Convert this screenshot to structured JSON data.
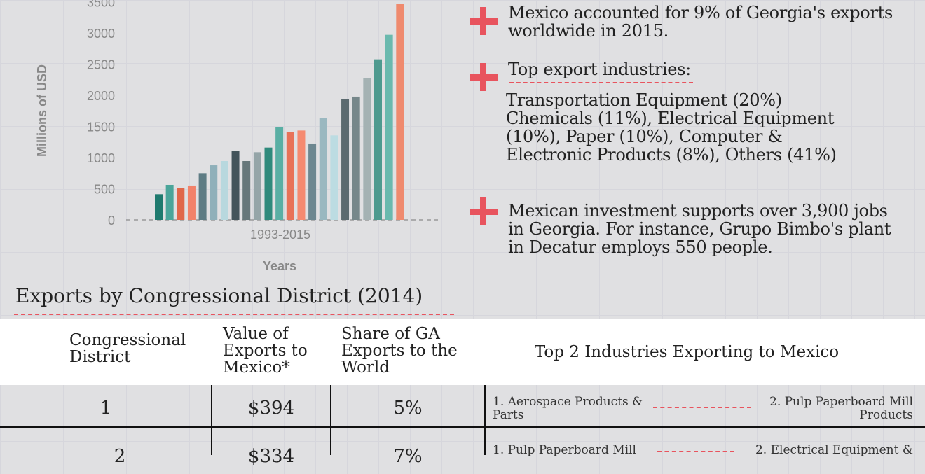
{
  "chart_data": {
    "type": "bar",
    "ylabel": "Millions of USD",
    "xlabel": "Years",
    "x_tick_label": "1993-2015",
    "yticks": [
      0,
      500,
      1000,
      1500,
      2000,
      2500,
      3000,
      3500
    ],
    "ylim": [
      0,
      3500
    ],
    "grid": true,
    "values": [
      412,
      562,
      506,
      551,
      749,
      876,
      944,
      1101,
      944,
      1086,
      1161,
      1491,
      1412,
      1434,
      1225,
      1629,
      1356,
      1936,
      1978,
      2273,
      2577,
      2970,
      3464
    ],
    "colors": [
      "#1f7a6e",
      "#4aa59a",
      "#e0674a",
      "#f2826a",
      "#5e7c84",
      "#8fb0ba",
      "#b8d8de",
      "#43545b",
      "#66777a",
      "#95a5a8",
      "#2f8a7c",
      "#5aafa4",
      "#e87258",
      "#f58a70",
      "#6d8790",
      "#9ab8c0",
      "#bcdce2",
      "#5b6a6f",
      "#76878a",
      "#a4b2b3",
      "#4e9a8f",
      "#6ab9ae",
      "#ef8a6e"
    ]
  },
  "facts": {
    "fact1": "Mexico accounted for 9% of Georgia's exports worldwide in 2015.",
    "fact2_title": "Top export industries:",
    "fact2_body": "Transportation Equipment (20%) Chemicals (11%), Electrical Equipment (10%), Paper (10%), Computer & Electronic Products (8%), Others (41%)",
    "fact3": "Mexican investment supports over 3,900 jobs in Georgia. For instance, Grupo Bimbo's plant in Decatur employs 550 people."
  },
  "accent_color": "#e8545e",
  "table": {
    "title": "Exports by Congressional District (2014)",
    "headers": [
      "Congressional District",
      "Value of Exports to Mexico*",
      "Share of GA Exports to the World",
      "Top 2 Industries Exporting to Mexico"
    ],
    "rows": [
      {
        "district": "1",
        "value": "$394",
        "share": "5%",
        "ind1": "1. Aerospace Products & Parts",
        "ind2": "2. Pulp Paperboard Mill Products"
      },
      {
        "district": "2",
        "value": "$334",
        "share": "7%",
        "ind1": "1. Pulp Paperboard Mill",
        "ind2": "2. Electrical Equipment &"
      }
    ]
  }
}
